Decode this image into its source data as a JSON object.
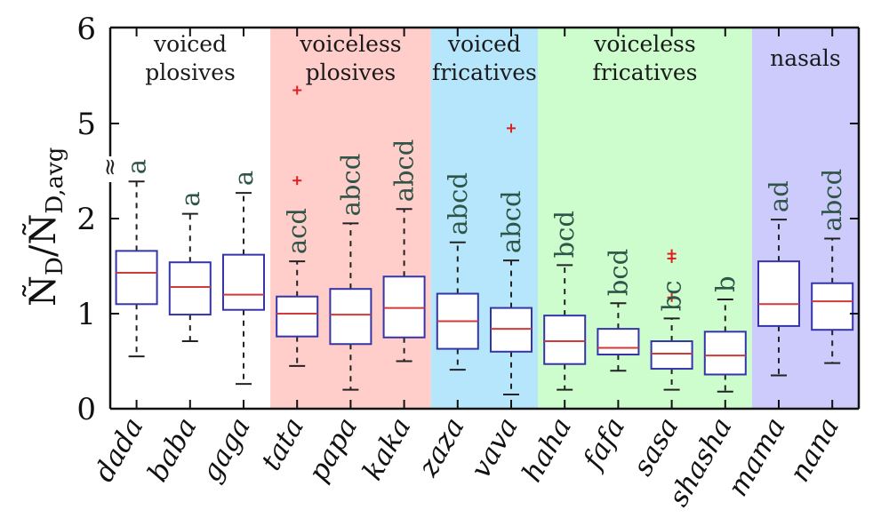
{
  "chart_data": {
    "type": "box",
    "title": "",
    "xlabel": "",
    "ylabel": "Ñ_D / Ñ_D,avg",
    "ylabel_main": "Ñ",
    "ylabel_parts": {
      "num": "Ñ",
      "num_sub": "D",
      "slash": "/",
      "den": "Ñ",
      "den_sub": "D,avg"
    },
    "y_axis": {
      "broken": true,
      "lower_segment": [
        0,
        2.4
      ],
      "upper_segment": [
        4.75,
        6
      ],
      "break_symbol": "≈",
      "ticks": [
        0,
        1,
        2,
        5,
        6
      ],
      "tick_labels": [
        "0",
        "1",
        "2",
        "5",
        "6"
      ]
    },
    "grid": false,
    "legend": "none",
    "groups": [
      {
        "name_lines": [
          "voiced",
          "plosives"
        ],
        "color": "#ffffff",
        "members": [
          "dada",
          "baba",
          "gaga"
        ]
      },
      {
        "name_lines": [
          "voiceless",
          "plosives"
        ],
        "color": "#ffcdca",
        "members": [
          "tata",
          "papa",
          "kaka"
        ]
      },
      {
        "name_lines": [
          "voiced",
          "fricatives"
        ],
        "color": "#b6e6fb",
        "members": [
          "zaza",
          "vava"
        ]
      },
      {
        "name_lines": [
          "voiceless",
          "fricatives"
        ],
        "color": "#cdfccd",
        "members": [
          "haha",
          "fafa",
          "sasa",
          "shasha"
        ]
      },
      {
        "name_lines": [
          "nasals"
        ],
        "color": "#cccbfc",
        "members": [
          "mama",
          "nana"
        ]
      }
    ],
    "categories": [
      "dada",
      "baba",
      "gaga",
      "tata",
      "papa",
      "kaka",
      "zaza",
      "vava",
      "haha",
      "fafa",
      "sasa",
      "shasha",
      "mama",
      "nana"
    ],
    "boxes": [
      {
        "category": "dada",
        "whisker_low": 0.55,
        "q1": 1.1,
        "median": 1.43,
        "q3": 1.66,
        "whisker_high": 2.39,
        "outliers": [],
        "letters": "a"
      },
      {
        "category": "baba",
        "whisker_low": 0.71,
        "q1": 0.99,
        "median": 1.28,
        "q3": 1.54,
        "whisker_high": 2.05,
        "outliers": [],
        "letters": "a"
      },
      {
        "category": "gaga",
        "whisker_low": 0.26,
        "q1": 1.04,
        "median": 1.2,
        "q3": 1.62,
        "whisker_high": 2.27,
        "outliers": [],
        "letters": "a"
      },
      {
        "category": "tata",
        "whisker_low": 0.45,
        "q1": 0.76,
        "median": 1.0,
        "q3": 1.18,
        "whisker_high": 1.55,
        "outliers": [
          2.4,
          5.35
        ],
        "letters": "acd"
      },
      {
        "category": "papa",
        "whisker_low": 0.2,
        "q1": 0.68,
        "median": 0.99,
        "q3": 1.26,
        "whisker_high": 1.95,
        "outliers": [],
        "letters": "abcd"
      },
      {
        "category": "kaka",
        "whisker_low": 0.5,
        "q1": 0.75,
        "median": 1.06,
        "q3": 1.39,
        "whisker_high": 2.1,
        "outliers": [],
        "letters": "abcd"
      },
      {
        "category": "zaza",
        "whisker_low": 0.41,
        "q1": 0.63,
        "median": 0.92,
        "q3": 1.21,
        "whisker_high": 1.75,
        "outliers": [],
        "letters": "abcd"
      },
      {
        "category": "vava",
        "whisker_low": 0.15,
        "q1": 0.6,
        "median": 0.84,
        "q3": 1.06,
        "whisker_high": 1.56,
        "outliers": [
          4.95
        ],
        "letters": "abcd"
      },
      {
        "category": "haha",
        "whisker_low": 0.2,
        "q1": 0.47,
        "median": 0.71,
        "q3": 0.98,
        "whisker_high": 1.51,
        "outliers": [],
        "letters": "bcd"
      },
      {
        "category": "fafa",
        "whisker_low": 0.4,
        "q1": 0.57,
        "median": 0.64,
        "q3": 0.84,
        "whisker_high": 1.11,
        "outliers": [],
        "letters": "bcd"
      },
      {
        "category": "sasa",
        "whisker_low": 0.2,
        "q1": 0.42,
        "median": 0.58,
        "q3": 0.71,
        "whisker_high": 0.95,
        "outliers": [
          1.17,
          1.58,
          1.63
        ],
        "letters": "bc"
      },
      {
        "category": "shasha",
        "whisker_low": 0.18,
        "q1": 0.36,
        "median": 0.56,
        "q3": 0.81,
        "whisker_high": 1.15,
        "outliers": [],
        "letters": "b"
      },
      {
        "category": "mama",
        "whisker_low": 0.35,
        "q1": 0.87,
        "median": 1.1,
        "q3": 1.55,
        "whisker_high": 1.99,
        "outliers": [],
        "letters": "ad"
      },
      {
        "category": "nana",
        "whisker_low": 0.48,
        "q1": 0.83,
        "median": 1.13,
        "q3": 1.32,
        "whisker_high": 1.79,
        "outliers": [],
        "letters": "abcd"
      }
    ],
    "colors": {
      "box_edge": "#3535a8",
      "median": "#d23a3a",
      "outlier": "#e02020",
      "whisker": "#222222",
      "letters": "#2f5548"
    }
  }
}
